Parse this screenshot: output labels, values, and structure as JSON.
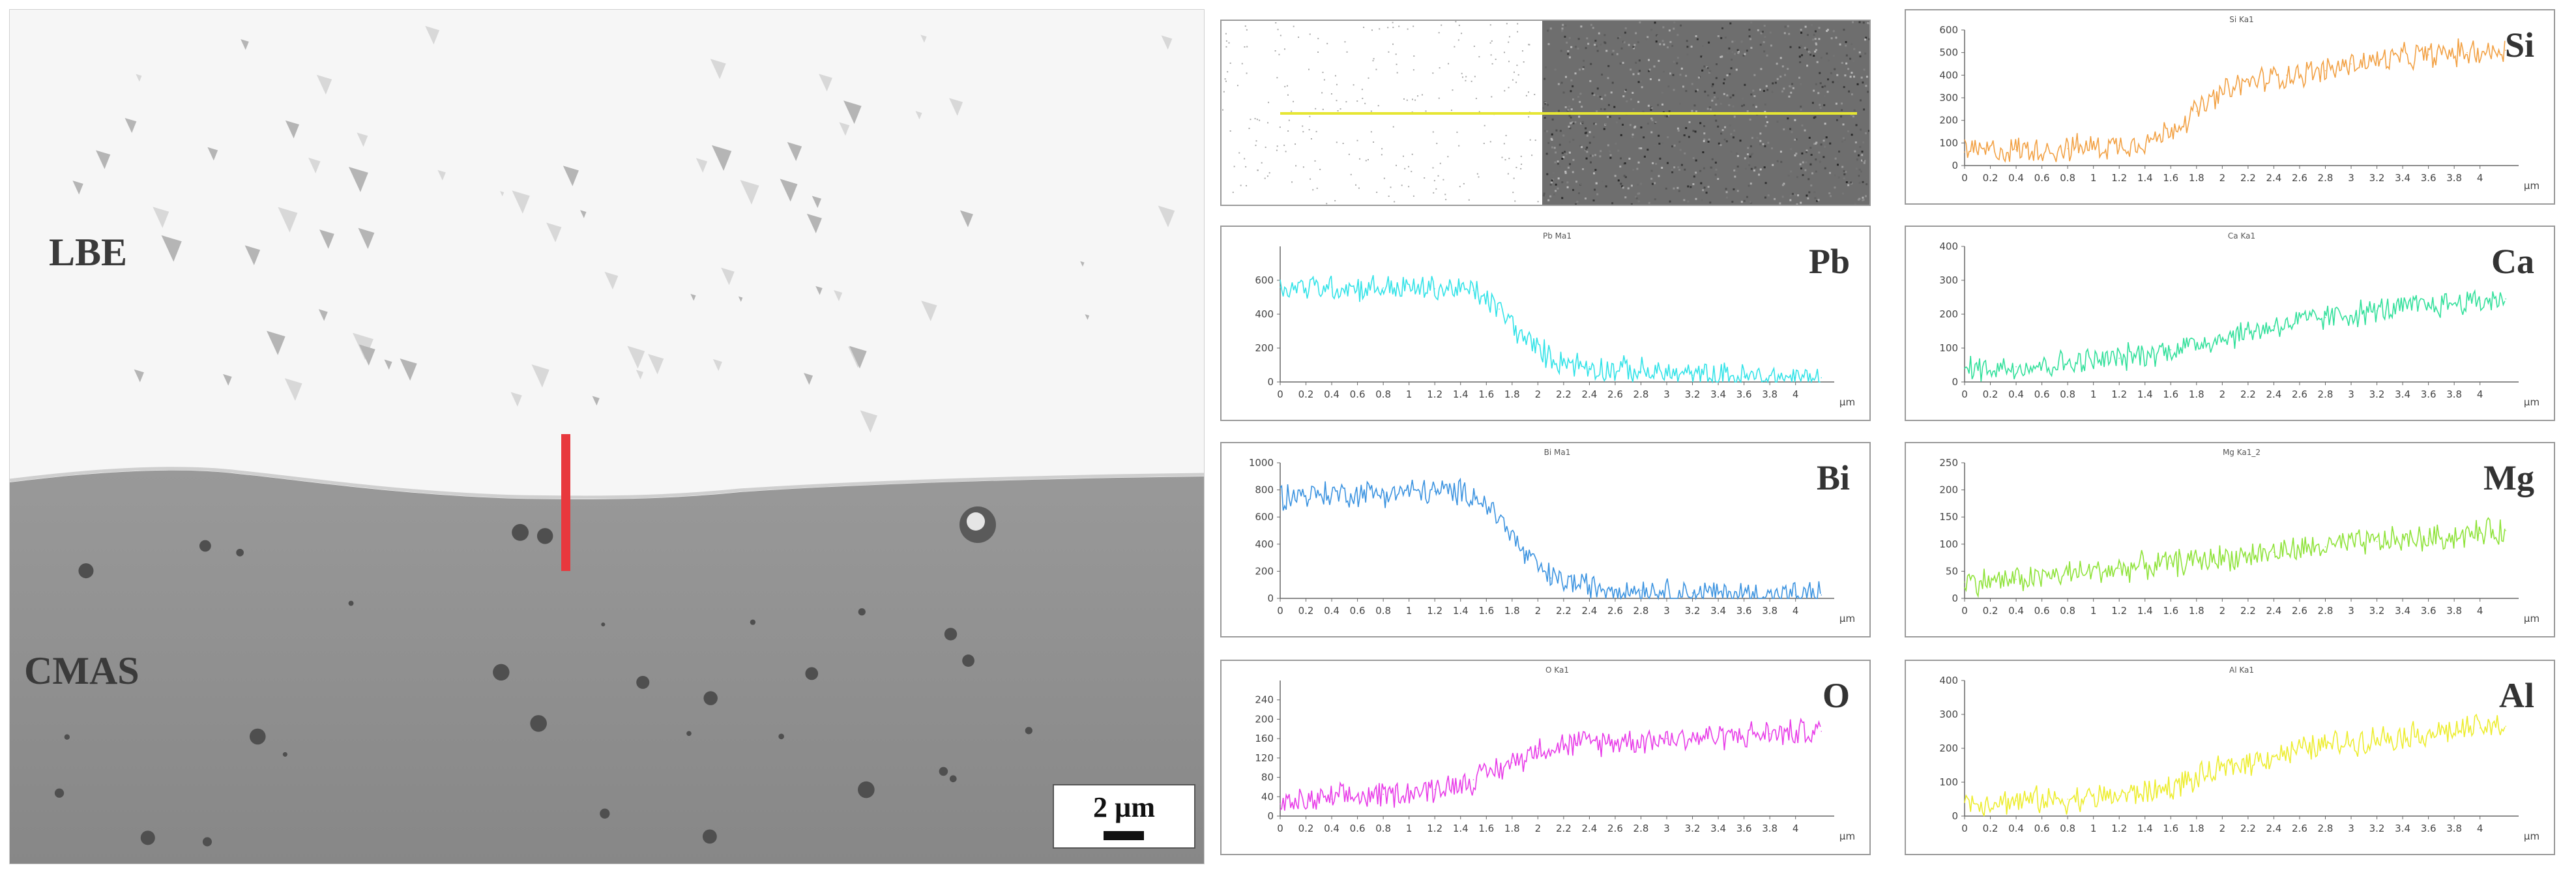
{
  "sem": {
    "labels": {
      "upper_phase": "LBE",
      "lower_phase": "CMAS"
    },
    "scale_bar": "2 µm",
    "colors": {
      "linescan_marker": "#e8383d",
      "lbe_phase": "#f6f6f6",
      "cmas_phase": "#8e8e8e"
    }
  },
  "eds_map": {
    "scan_line_color": "#e6e633"
  },
  "chart_data": [
    {
      "type": "line",
      "element": "Si",
      "title": "Si Ka1",
      "color": "#f2a144",
      "ylim": [
        0,
        600
      ],
      "yticks": [
        "0",
        "100",
        "200",
        "300",
        "400",
        "500",
        "600"
      ],
      "xlim": [
        0,
        4.3
      ],
      "xunit": "µm",
      "xticks": [
        "0",
        "0.2",
        "0.4",
        "0.6",
        "0.8",
        "1",
        "1.2",
        "1.4",
        "1.6",
        "1.8",
        "2",
        "2.2",
        "2.4",
        "2.6",
        "2.8",
        "3",
        "3.2",
        "3.4",
        "3.6",
        "3.8",
        "4"
      ],
      "x": [
        0,
        0.4,
        0.8,
        1.2,
        1.5,
        1.8,
        2.0,
        2.2,
        2.5,
        2.8,
        3.0,
        3.3,
        3.6,
        3.9,
        4.2
      ],
      "y": [
        60,
        70,
        75,
        90,
        120,
        240,
        320,
        370,
        400,
        420,
        450,
        470,
        490,
        500,
        510
      ]
    },
    {
      "type": "line",
      "element": "Pb",
      "title": "Pb Ma1",
      "color": "#33e3e8",
      "ylim": [
        0,
        800
      ],
      "yticks": [
        "0",
        "200",
        "400",
        "600"
      ],
      "xlim": [
        0,
        4.3
      ],
      "xunit": "µm",
      "xticks": [
        "0",
        "0.2",
        "0.4",
        "0.6",
        "0.8",
        "1",
        "1.2",
        "1.4",
        "1.6",
        "1.8",
        "2",
        "2.2",
        "2.4",
        "2.6",
        "2.8",
        "3",
        "3.2",
        "3.4",
        "3.6",
        "3.8",
        "4"
      ],
      "x": [
        0,
        0.4,
        0.8,
        1.2,
        1.5,
        1.7,
        1.9,
        2.1,
        2.4,
        2.8,
        3.2,
        3.6,
        4.0,
        4.2
      ],
      "y": [
        560,
        560,
        555,
        550,
        540,
        430,
        250,
        140,
        90,
        60,
        40,
        30,
        25,
        25
      ]
    },
    {
      "type": "line",
      "element": "Bi",
      "title": "Bi Ma1",
      "color": "#3b93e0",
      "ylim": [
        0,
        1000
      ],
      "yticks": [
        "0",
        "200",
        "400",
        "600",
        "800",
        "1000"
      ],
      "xlim": [
        0,
        4.3
      ],
      "xunit": "µm",
      "xticks": [
        "0",
        "0.2",
        "0.4",
        "0.6",
        "0.8",
        "1",
        "1.2",
        "1.4",
        "1.6",
        "1.8",
        "2",
        "2.2",
        "2.4",
        "2.6",
        "2.8",
        "3",
        "3.2",
        "3.4",
        "3.6",
        "3.8",
        "4"
      ],
      "x": [
        0,
        0.4,
        0.8,
        1.2,
        1.5,
        1.7,
        1.9,
        2.1,
        2.4,
        2.8,
        3.2,
        3.6,
        4.0,
        4.2
      ],
      "y": [
        760,
        770,
        780,
        790,
        770,
        600,
        320,
        150,
        90,
        60,
        40,
        30,
        25,
        25
      ]
    },
    {
      "type": "line",
      "element": "O",
      "title": "O Ka1",
      "color": "#e83ce8",
      "ylim": [
        0,
        280
      ],
      "yticks": [
        "0",
        "40",
        "80",
        "120",
        "160",
        "200",
        "240"
      ],
      "xlim": [
        0,
        4.3
      ],
      "xunit": "µm",
      "xticks": [
        "0",
        "0.2",
        "0.4",
        "0.6",
        "0.8",
        "1",
        "1.2",
        "1.4",
        "1.6",
        "1.8",
        "2",
        "2.2",
        "2.4",
        "2.6",
        "2.8",
        "3",
        "3.2",
        "3.4",
        "3.6",
        "3.8",
        "4"
      ],
      "x": [
        0,
        0.4,
        0.8,
        1.2,
        1.5,
        1.8,
        2.0,
        2.3,
        2.6,
        3.0,
        3.4,
        3.8,
        4.2
      ],
      "y": [
        25,
        35,
        45,
        55,
        75,
        110,
        140,
        150,
        155,
        160,
        165,
        170,
        175
      ]
    },
    {
      "type": "line",
      "element": "Ca",
      "title": "Ca Ka1",
      "color": "#33e09b",
      "ylim": [
        0,
        400
      ],
      "yticks": [
        "0",
        "100",
        "200",
        "300",
        "400"
      ],
      "xlim": [
        0,
        4.3
      ],
      "xunit": "µm",
      "xticks": [
        "0",
        "0.2",
        "0.4",
        "0.6",
        "0.8",
        "1",
        "1.2",
        "1.4",
        "1.6",
        "1.8",
        "2",
        "2.2",
        "2.4",
        "2.6",
        "2.8",
        "3",
        "3.2",
        "3.4",
        "3.6",
        "3.8",
        "4"
      ],
      "x": [
        0,
        0.4,
        0.8,
        1.2,
        1.6,
        2.0,
        2.4,
        2.8,
        3.2,
        3.6,
        4.0,
        4.2
      ],
      "y": [
        40,
        45,
        55,
        70,
        95,
        130,
        165,
        190,
        210,
        225,
        240,
        245
      ]
    },
    {
      "type": "line",
      "element": "Mg",
      "title": "Mg Ka1_2",
      "color": "#8fe33a",
      "ylim": [
        0,
        250
      ],
      "yticks": [
        "0",
        "50",
        "100",
        "150",
        "200",
        "250"
      ],
      "xlim": [
        0,
        4.3
      ],
      "xunit": "µm",
      "xticks": [
        "0",
        "0.2",
        "0.4",
        "0.6",
        "0.8",
        "1",
        "1.2",
        "1.4",
        "1.6",
        "1.8",
        "2",
        "2.2",
        "2.4",
        "2.6",
        "2.8",
        "3",
        "3.2",
        "3.4",
        "3.6",
        "3.8",
        "4"
      ],
      "x": [
        0,
        0.4,
        0.8,
        1.2,
        1.6,
        2.0,
        2.4,
        2.8,
        3.2,
        3.6,
        4.0,
        4.2
      ],
      "y": [
        30,
        35,
        45,
        55,
        65,
        75,
        85,
        95,
        105,
        110,
        120,
        125
      ]
    },
    {
      "type": "line",
      "element": "Al",
      "title": "Al Ka1",
      "color": "#eded2e",
      "ylim": [
        0,
        400
      ],
      "yticks": [
        "0",
        "100",
        "200",
        "300",
        "400"
      ],
      "xlim": [
        0,
        4.3
      ],
      "xunit": "µm",
      "xticks": [
        "0",
        "0.2",
        "0.4",
        "0.6",
        "0.8",
        "1",
        "1.2",
        "1.4",
        "1.6",
        "1.8",
        "2",
        "2.2",
        "2.4",
        "2.6",
        "2.8",
        "3",
        "3.2",
        "3.4",
        "3.6",
        "3.8",
        "4"
      ],
      "x": [
        0,
        0.4,
        0.8,
        1.2,
        1.5,
        1.8,
        2.1,
        2.4,
        2.8,
        3.2,
        3.6,
        4.0,
        4.2
      ],
      "y": [
        40,
        45,
        50,
        60,
        75,
        110,
        150,
        180,
        210,
        230,
        245,
        260,
        265
      ]
    }
  ]
}
